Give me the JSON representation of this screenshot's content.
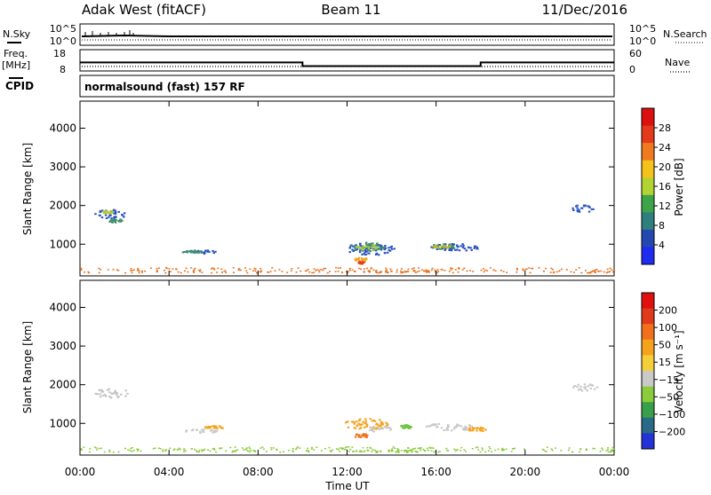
{
  "header": {
    "radar": "Adak West (fitACF)",
    "beam": "Beam 11",
    "date": "11/Dec/2016"
  },
  "status_rows": {
    "nsky_label": "N.Sky",
    "freq_label": "Freq.",
    "mhz_label": "[MHz]",
    "cpid_label": "CPID",
    "nsearch_label": "N.Search",
    "nave_label": "Nave",
    "left_top_ticks": [
      "10^5",
      "10^0"
    ],
    "right_top_ticks": [
      "10^5",
      "10^0"
    ],
    "freq_ticks": [
      "18",
      "8"
    ],
    "nave_ticks": [
      "60",
      "0"
    ],
    "cpid_text": "normalsound (fast) 157 RF",
    "freq_mhz": [
      {
        "t_start": 0,
        "t_end": 10,
        "value": 12
      },
      {
        "t_start": 10,
        "t_end": 18,
        "value": 10.3
      },
      {
        "t_start": 18,
        "t_end": 24,
        "value": 12
      }
    ]
  },
  "chart_data": [
    {
      "type": "heatmap",
      "name": "power",
      "xlabel": "Time UT",
      "ylabel": "Slant Range [km]",
      "xlim": [
        0,
        24
      ],
      "ylim": [
        180,
        4700
      ],
      "xticks": [
        "00:00",
        "04:00",
        "08:00",
        "12:00",
        "16:00",
        "20:00",
        "00:00"
      ],
      "yticks": [
        1000,
        2000,
        3000,
        4000
      ],
      "colorbar": {
        "label": "Power [dB]",
        "ticks": [
          "4",
          "8",
          "12",
          "16",
          "20",
          "24",
          "28"
        ],
        "colors": [
          "#1f2cf0",
          "#2548b0",
          "#2f7f7e",
          "#3ea44a",
          "#b3d331",
          "#f5c21c",
          "#f07a1f",
          "#e23a1a",
          "#dd1010"
        ]
      },
      "blobs": [
        {
          "t": 1.4,
          "r": 1800,
          "dt": 1.6,
          "dr": 240,
          "color": "#2a53c2"
        },
        {
          "t": 1.6,
          "r": 1620,
          "dt": 0.7,
          "dr": 120,
          "color": "#3e8f6a"
        },
        {
          "t": 1.2,
          "r": 1850,
          "dt": 0.5,
          "dr": 80,
          "color": "#b5c53a"
        },
        {
          "t": 5.4,
          "r": 820,
          "dt": 1.5,
          "dr": 110,
          "color": "#2a53c2"
        },
        {
          "t": 5.0,
          "r": 820,
          "dt": 0.9,
          "dr": 70,
          "color": "#3e8f6a"
        },
        {
          "t": 13.0,
          "r": 900,
          "dt": 2.2,
          "dr": 330,
          "color": "#2a53c2"
        },
        {
          "t": 12.8,
          "r": 950,
          "dt": 1.7,
          "dr": 230,
          "color": "#3e8f6a"
        },
        {
          "t": 12.9,
          "r": 940,
          "dt": 1.2,
          "dr": 150,
          "color": "#a8c83c"
        },
        {
          "t": 12.6,
          "r": 620,
          "dt": 0.6,
          "dr": 100,
          "color": "#f0a21c"
        },
        {
          "t": 12.6,
          "r": 540,
          "dt": 0.3,
          "dr": 60,
          "color": "#e2401a"
        },
        {
          "t": 16.8,
          "r": 930,
          "dt": 2.2,
          "dr": 220,
          "color": "#2a53c2"
        },
        {
          "t": 16.4,
          "r": 960,
          "dt": 1.4,
          "dr": 140,
          "color": "#3e8f6a"
        },
        {
          "t": 16.2,
          "r": 960,
          "dt": 0.8,
          "dr": 80,
          "color": "#c0b52e"
        },
        {
          "t": 14.0,
          "r": 320,
          "dt": 3.5,
          "dr": 60,
          "color": "#e8721f"
        },
        {
          "t": 22.6,
          "r": 1950,
          "dt": 1.2,
          "dr": 200,
          "color": "#2a53c2"
        }
      ]
    },
    {
      "type": "heatmap",
      "name": "velocity",
      "xlabel": "Time UT",
      "ylabel": "Slant Range [km]",
      "xlim": [
        0,
        24
      ],
      "ylim": [
        180,
        4700
      ],
      "xticks": [
        "00:00",
        "04:00",
        "08:00",
        "12:00",
        "16:00",
        "20:00",
        "00:00"
      ],
      "yticks": [
        1000,
        2000,
        3000,
        4000
      ],
      "colorbar": {
        "label": "Velocity [m s⁻¹]",
        "ticks": [
          "200",
          "100",
          "50",
          "15",
          "−15",
          "−50",
          "−100",
          "−200"
        ],
        "colors": [
          "#2532d8",
          "#2a6a88",
          "#38a04a",
          "#8ccc3c",
          "#c9c9c9",
          "#f5cf3a",
          "#f5a21c",
          "#f0701c",
          "#e03a1a",
          "#e01010"
        ]
      },
      "blobs": [
        {
          "t": 1.4,
          "r": 1800,
          "dt": 1.6,
          "dr": 240,
          "color": "#c4c4c4"
        },
        {
          "t": 5.4,
          "r": 820,
          "dt": 1.5,
          "dr": 110,
          "color": "#c8c8c8"
        },
        {
          "t": 6.0,
          "r": 920,
          "dt": 0.9,
          "dr": 80,
          "color": "#f5a21c"
        },
        {
          "t": 12.8,
          "r": 1000,
          "dt": 2.0,
          "dr": 300,
          "color": "#f5a21c"
        },
        {
          "t": 13.4,
          "r": 880,
          "dt": 1.2,
          "dr": 160,
          "color": "#c8c8c8"
        },
        {
          "t": 12.6,
          "r": 700,
          "dt": 0.7,
          "dr": 110,
          "color": "#f0701c"
        },
        {
          "t": 14.6,
          "r": 930,
          "dt": 0.5,
          "dr": 120,
          "color": "#6cc43c"
        },
        {
          "t": 16.6,
          "r": 930,
          "dt": 2.2,
          "dr": 200,
          "color": "#c8c8c8"
        },
        {
          "t": 17.8,
          "r": 870,
          "dt": 0.9,
          "dr": 110,
          "color": "#f5a21c"
        },
        {
          "t": 14.0,
          "r": 300,
          "dt": 4.0,
          "dr": 60,
          "color": "#8ccc3c"
        },
        {
          "t": 22.6,
          "r": 1950,
          "dt": 1.2,
          "dr": 200,
          "color": "#c8c8c8"
        }
      ]
    }
  ]
}
